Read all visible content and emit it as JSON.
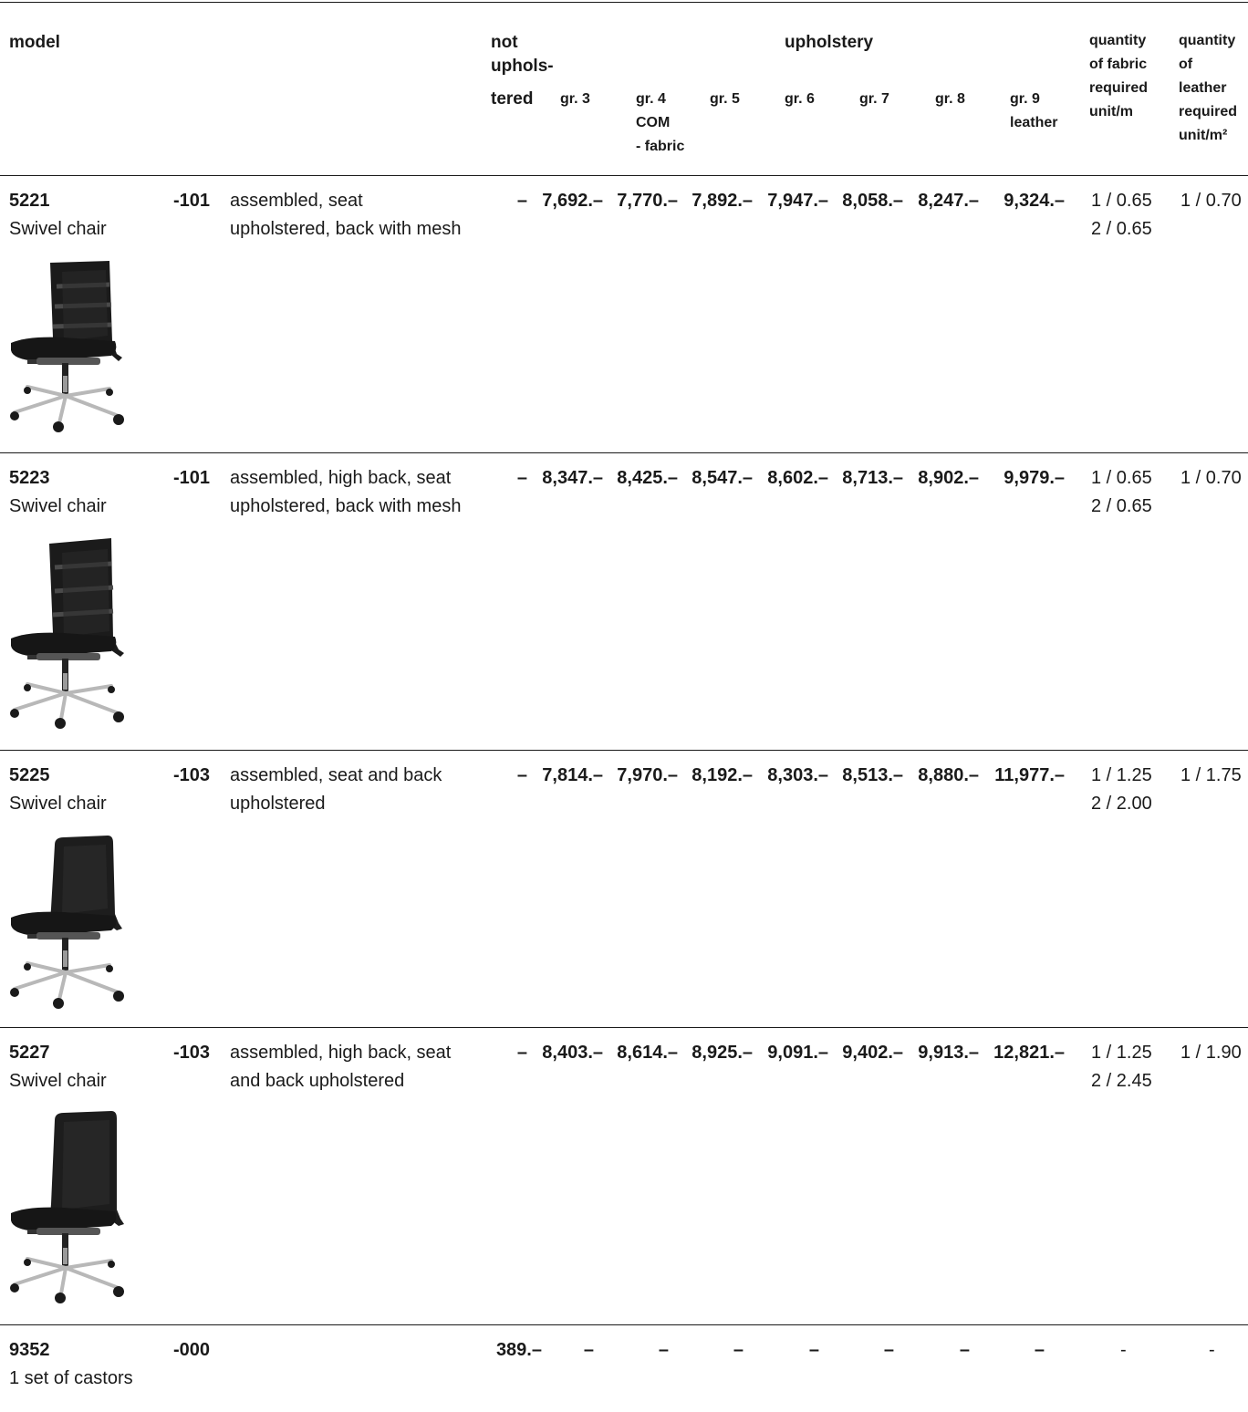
{
  "header": {
    "model": "model",
    "not_upholstered": [
      "not",
      "uphols-",
      "tered"
    ],
    "upholstery": "upholstery",
    "groups": [
      [
        "gr. 3"
      ],
      [
        "gr. 4",
        "COM",
        "- fabric"
      ],
      [
        "gr. 5"
      ],
      [
        "gr. 6"
      ],
      [
        "gr. 7"
      ],
      [
        "gr. 8"
      ],
      [
        "gr. 9",
        "leather"
      ]
    ],
    "qty_fabric": [
      "quantity",
      "of fabric",
      "required",
      "unit/m"
    ],
    "qty_leather": [
      "quantity",
      "of",
      "leather",
      "required",
      "unit/m²"
    ]
  },
  "rows": [
    {
      "model": "5221",
      "name": "Swivel chair",
      "code": "-101",
      "desc": [
        "assembled, seat",
        "upholstered, back with mesh"
      ],
      "not_upholstered": "–",
      "prices": [
        "7,692.–",
        "7,770.–",
        "7,892.–",
        "7,947.–",
        "8,058.–",
        "8,247.–",
        "9,324.–"
      ],
      "fabric": [
        "1 / 0.65",
        "2 / 0.65"
      ],
      "leather": "1 / 0.70",
      "image": "mesh-low"
    },
    {
      "model": "5223",
      "name": "Swivel chair",
      "code": "-101",
      "desc": [
        "assembled, high back, seat",
        "upholstered, back with mesh"
      ],
      "not_upholstered": "–",
      "prices": [
        "8,347.–",
        "8,425.–",
        "8,547.–",
        "8,602.–",
        "8,713.–",
        "8,902.–",
        "9,979.–"
      ],
      "fabric": [
        "1 / 0.65",
        "2 / 0.65"
      ],
      "leather": "1 / 0.70",
      "image": "mesh-high"
    },
    {
      "model": "5225",
      "name": "Swivel chair",
      "code": "-103",
      "desc": [
        "assembled, seat and back",
        "upholstered"
      ],
      "not_upholstered": "–",
      "prices": [
        "7,814.–",
        "7,970.–",
        "8,192.–",
        "8,303.–",
        "8,513.–",
        "8,880.–",
        "11,977.–"
      ],
      "fabric": [
        "1 / 1.25",
        "2 / 2.00"
      ],
      "leather": "1 / 1.75",
      "image": "upholstered-low"
    },
    {
      "model": "5227",
      "name": "Swivel chair",
      "code": "-103",
      "desc": [
        "assembled, high back, seat",
        "and back upholstered"
      ],
      "not_upholstered": "–",
      "prices": [
        "8,403.–",
        "8,614.–",
        "8,925.–",
        "9,091.–",
        "9,402.–",
        "9,913.–",
        "12,821.–"
      ],
      "fabric": [
        "1 / 1.25",
        "2 / 2.45"
      ],
      "leather": "1 / 1.90",
      "image": "upholstered-high"
    },
    {
      "model": "9352",
      "name": "1 set of castors",
      "code": "-000",
      "desc": [],
      "not_upholstered": "389.–",
      "prices": [
        "–",
        "–",
        "–",
        "–",
        "–",
        "–",
        "–"
      ],
      "fabric": [
        "-"
      ],
      "leather": "-",
      "image": ""
    }
  ]
}
